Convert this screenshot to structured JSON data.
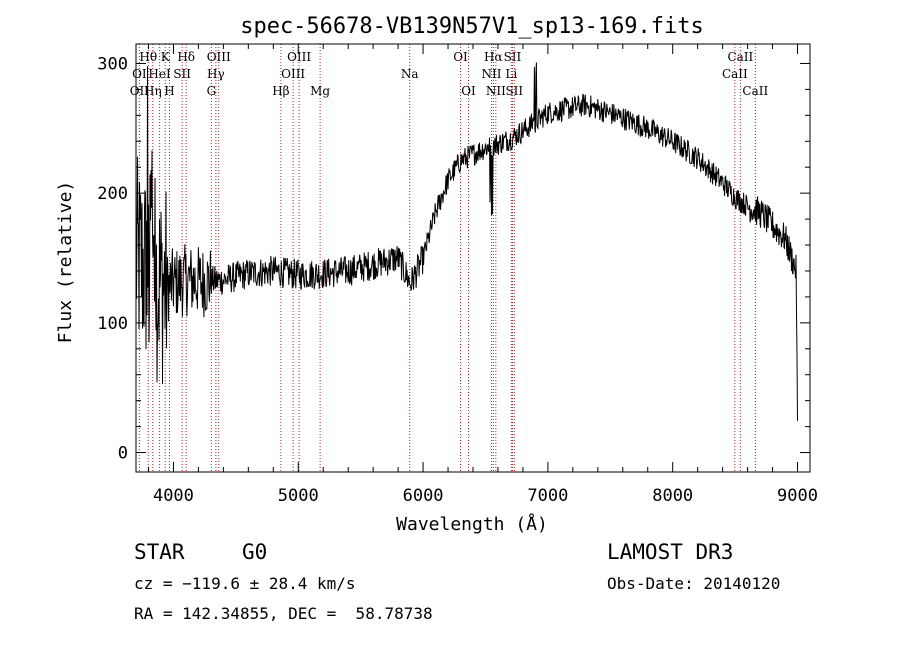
{
  "chart_data": {
    "type": "line",
    "title": "spec-56678-VB139N57V1_sp13-169.fits",
    "xlabel": "Wavelength (Å)",
    "ylabel": "Flux (relative)",
    "xlim": [
      3700,
      9100
    ],
    "ylim": [
      -15,
      315
    ],
    "xticks": [
      4000,
      5000,
      6000,
      7000,
      8000,
      9000
    ],
    "yticks": [
      0,
      100,
      200,
      300
    ],
    "grid": false,
    "series": [
      {
        "name": "spectrum",
        "x": [
          3700,
          3750,
          3800,
          3850,
          3900,
          3950,
          4000,
          4100,
          4200,
          4300,
          4400,
          4600,
          4800,
          5000,
          5200,
          5400,
          5600,
          5800,
          5900,
          6000,
          6100,
          6200,
          6300,
          6400,
          6500,
          6600,
          6700,
          6800,
          6900,
          7000,
          7100,
          7200,
          7300,
          7400,
          7600,
          7800,
          8000,
          8200,
          8400,
          8500,
          8600,
          8700,
          8800,
          8900,
          8990,
          9000
        ],
        "y": [
          150,
          145,
          140,
          135,
          130,
          128,
          130,
          133,
          132,
          132,
          133,
          138,
          140,
          137,
          138,
          140,
          145,
          150,
          130,
          150,
          185,
          210,
          225,
          230,
          235,
          238,
          242,
          248,
          255,
          262,
          264,
          266,
          268,
          265,
          258,
          250,
          240,
          227,
          208,
          197,
          190,
          185,
          175,
          165,
          140,
          20
        ]
      }
    ],
    "lines": [
      {
        "label": "Hθ",
        "x": 3798,
        "row": 0
      },
      {
        "label": "K",
        "x": 3934,
        "row": 0
      },
      {
        "label": "Hδ",
        "x": 4102,
        "row": 0
      },
      {
        "label": "OIII",
        "x": 4363,
        "row": 0
      },
      {
        "label": "OIII",
        "x": 5007,
        "row": 0
      },
      {
        "label": "OI",
        "x": 6300,
        "row": 0
      },
      {
        "label": "Hα",
        "x": 6563,
        "row": 0
      },
      {
        "label": "SII",
        "x": 6716,
        "row": 0
      },
      {
        "label": "CaII",
        "x": 8542,
        "row": 0
      },
      {
        "label": "OI",
        "x": 3727,
        "row": 1
      },
      {
        "label": "HeI",
        "x": 3889,
        "row": 1
      },
      {
        "label": "SII",
        "x": 4070,
        "row": 1
      },
      {
        "label": "Hγ",
        "x": 4340,
        "row": 1
      },
      {
        "label": "OIII",
        "x": 4959,
        "row": 1
      },
      {
        "label": "Na",
        "x": 5893,
        "row": 1
      },
      {
        "label": "NII",
        "x": 6548,
        "row": 1
      },
      {
        "label": "Li",
        "x": 6707,
        "row": 1
      },
      {
        "label": "CaII",
        "x": 8498,
        "row": 1
      },
      {
        "label": "OII",
        "x": 3727,
        "row": 2
      },
      {
        "label": "Hη",
        "x": 3835,
        "row": 2
      },
      {
        "label": "H",
        "x": 3968,
        "row": 2
      },
      {
        "label": "G",
        "x": 4304,
        "row": 2
      },
      {
        "label": "Hβ",
        "x": 4861,
        "row": 2
      },
      {
        "label": "Mg",
        "x": 5175,
        "row": 2
      },
      {
        "label": "OI",
        "x": 6364,
        "row": 2
      },
      {
        "label": "NII",
        "x": 6583,
        "row": 2
      },
      {
        "label": "SII",
        "x": 6731,
        "row": 2
      },
      {
        "label": "CaII",
        "x": 8662,
        "row": 2
      }
    ]
  },
  "info": {
    "class_label": "STAR",
    "subclass": "G0",
    "survey": "LAMOST DR3",
    "cz": "cz = −119.6 ± 28.4 km/s",
    "obs_date": "Obs-Date: 20140120",
    "coords": "RA = 142.34855, DEC =  58.78738"
  },
  "colors": {
    "axis": "#000000",
    "spectrum": "#000000",
    "line_marker": "#b22222"
  }
}
